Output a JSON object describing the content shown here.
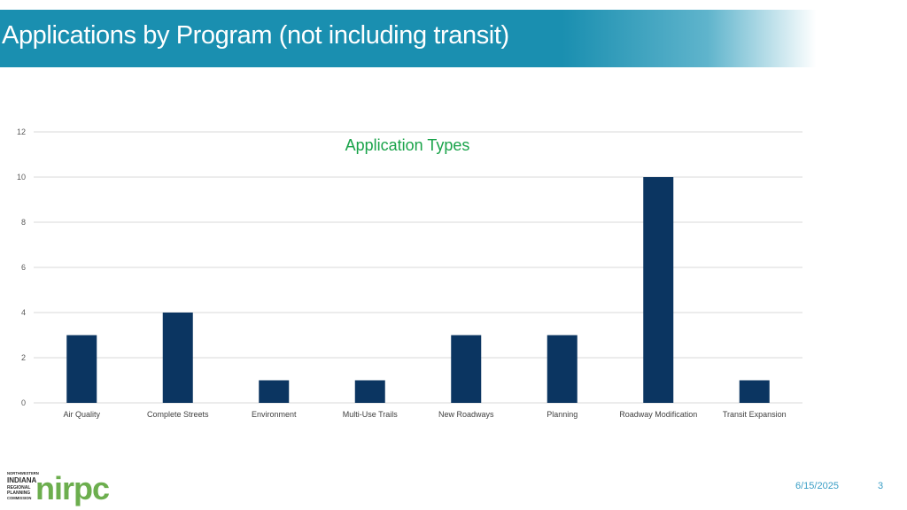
{
  "slide": {
    "title": "Applications by Program (not including transit)",
    "date": "6/15/2025",
    "page_number": "3"
  },
  "logo": {
    "line1": "NORTHWESTERN",
    "line2": "INDIANA",
    "line3": "REGIONAL",
    "line4": "PLANNING",
    "line5": "COMMISSION",
    "wordmark": "nirpc"
  },
  "colors": {
    "banner": "#1a8fb0",
    "bar": "#0b3561",
    "chart_title": "#1aa34a",
    "footer": "#3a9ec6",
    "logo_green": "#6cae4e"
  },
  "chart_data": {
    "type": "bar",
    "title": "Application Types",
    "categories": [
      "Air Quality",
      "Complete Streets",
      "Environment",
      "Multi-Use Trails",
      "New Roadways",
      "Planning",
      "Roadway Modification",
      "Transit Expansion"
    ],
    "values": [
      3,
      4,
      1,
      1,
      3,
      3,
      10,
      1
    ],
    "yticks": [
      0,
      2,
      4,
      6,
      8,
      10,
      12
    ],
    "ylim": [
      0,
      12
    ],
    "xlabel": "",
    "ylabel": "",
    "grid": true,
    "legend": "none"
  }
}
